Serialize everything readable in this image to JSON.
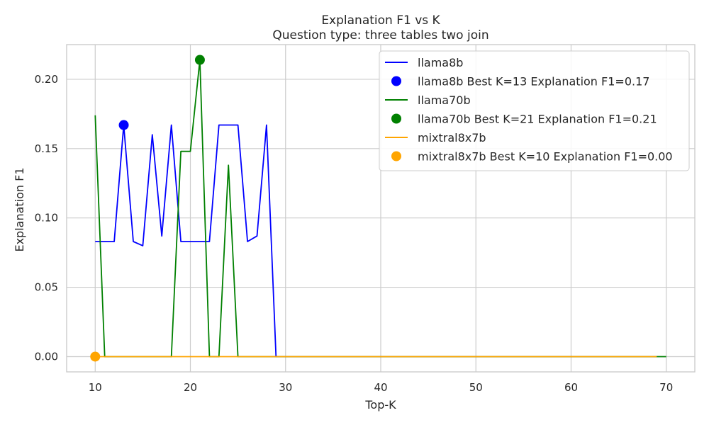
{
  "chart_data": {
    "type": "line",
    "title": "Explanation F1 vs K",
    "subtitle": "Question type: three tables two join",
    "xlabel": "Top-K",
    "ylabel": "Explanation F1",
    "xlim": [
      7,
      73
    ],
    "ylim": [
      -0.011,
      0.225
    ],
    "xticks": [
      10,
      20,
      30,
      40,
      50,
      60,
      70
    ],
    "yticks": [
      0.0,
      0.05,
      0.1,
      0.15,
      0.2
    ],
    "ytick_labels": [
      "0.00",
      "0.05",
      "0.10",
      "0.15",
      "0.20"
    ],
    "grid": true,
    "legend_position": "top-right",
    "series": [
      {
        "name": "llama8b",
        "color": "#0000ff",
        "x": [
          10,
          11,
          12,
          13,
          14,
          15,
          16,
          17,
          18,
          19,
          20,
          21,
          22,
          23,
          24,
          25,
          26,
          27,
          28,
          29,
          30,
          31,
          32,
          33,
          34,
          35,
          36,
          37,
          38,
          39,
          40,
          41,
          42,
          43,
          44,
          45,
          46,
          47,
          48,
          49,
          50,
          51,
          52,
          53,
          54,
          55,
          56,
          57,
          58,
          59,
          60,
          61,
          62,
          63,
          64,
          65,
          66,
          67,
          68,
          69
        ],
        "y": [
          0.083,
          0.083,
          0.083,
          0.167,
          0.083,
          0.08,
          0.16,
          0.087,
          0.167,
          0.083,
          0.083,
          0.083,
          0.083,
          0.167,
          0.167,
          0.167,
          0.083,
          0.087,
          0.167,
          0,
          0,
          0,
          0,
          0,
          0,
          0,
          0,
          0,
          0,
          0,
          0,
          0,
          0,
          0,
          0,
          0,
          0,
          0,
          0,
          0,
          0,
          0,
          0,
          0,
          0,
          0,
          0,
          0,
          0,
          0,
          0,
          0,
          0,
          0,
          0,
          0,
          0,
          0,
          0,
          0
        ],
        "best": {
          "x": 13,
          "y": 0.167,
          "label": "llama8b Best K=13 Explanation F1=0.17"
        }
      },
      {
        "name": "llama70b",
        "color": "#008000",
        "x": [
          10,
          11,
          12,
          13,
          14,
          15,
          16,
          17,
          18,
          19,
          20,
          21,
          22,
          23,
          24,
          25,
          26,
          27,
          28,
          29,
          30,
          31,
          32,
          33,
          34,
          35,
          36,
          37,
          38,
          39,
          40,
          41,
          42,
          43,
          44,
          45,
          46,
          47,
          48,
          49,
          50,
          51,
          52,
          53,
          54,
          55,
          56,
          57,
          58,
          59,
          60,
          61,
          62,
          63,
          64,
          65,
          66,
          67,
          68,
          69,
          70
        ],
        "y": [
          0.174,
          0,
          0,
          0,
          0,
          0,
          0,
          0,
          0,
          0.148,
          0.148,
          0.214,
          0,
          0,
          0.138,
          0,
          0,
          0,
          0,
          0,
          0,
          0,
          0,
          0,
          0,
          0,
          0,
          0,
          0,
          0,
          0,
          0,
          0,
          0,
          0,
          0,
          0,
          0,
          0,
          0,
          0,
          0,
          0,
          0,
          0,
          0,
          0,
          0,
          0,
          0,
          0,
          0,
          0,
          0,
          0,
          0,
          0,
          0,
          0,
          0,
          0
        ],
        "best": {
          "x": 21,
          "y": 0.214,
          "label": "llama70b Best K=21 Explanation F1=0.21"
        }
      },
      {
        "name": "mixtral8x7b",
        "color": "#ffa500",
        "x": [
          10,
          11,
          12,
          13,
          14,
          15,
          16,
          17,
          18,
          19,
          20,
          21,
          22,
          23,
          24,
          25,
          26,
          27,
          28,
          29,
          30,
          31,
          32,
          33,
          34,
          35,
          36,
          37,
          38,
          39,
          40,
          41,
          42,
          43,
          44,
          45,
          46,
          47,
          48,
          49,
          50,
          51,
          52,
          53,
          54,
          55,
          56,
          57,
          58,
          59,
          60,
          61,
          62,
          63,
          64,
          65,
          66,
          67,
          68,
          69
        ],
        "y": [
          0,
          0,
          0,
          0,
          0,
          0,
          0,
          0,
          0,
          0,
          0,
          0,
          0,
          0,
          0,
          0,
          0,
          0,
          0,
          0,
          0,
          0,
          0,
          0,
          0,
          0,
          0,
          0,
          0,
          0,
          0,
          0,
          0,
          0,
          0,
          0,
          0,
          0,
          0,
          0,
          0,
          0,
          0,
          0,
          0,
          0,
          0,
          0,
          0,
          0,
          0,
          0,
          0,
          0,
          0,
          0,
          0,
          0,
          0,
          0
        ],
        "best": {
          "x": 10,
          "y": 0.0,
          "label": "mixtral8x7b Best K=10 Explanation F1=0.00"
        }
      }
    ]
  }
}
